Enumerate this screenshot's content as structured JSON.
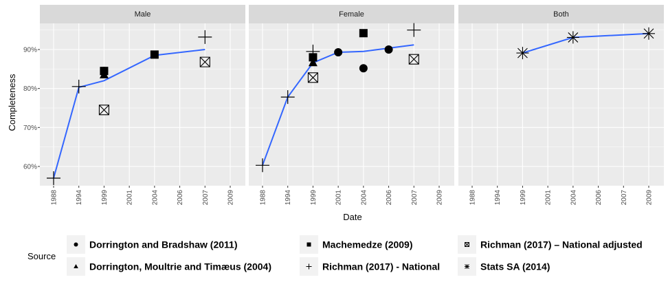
{
  "chart_data": {
    "type": "scatter",
    "ylabel": "Completeness",
    "xlabel": "Date",
    "x_ticks": [
      1988,
      1994,
      1999,
      2001,
      2004,
      2006,
      2007,
      2009
    ],
    "y_ticks": [
      0.6,
      0.7,
      0.8,
      0.9
    ],
    "y_tick_labels": [
      "60%",
      "70%",
      "80%",
      "90%"
    ],
    "ylim": [
      0.55,
      0.98
    ],
    "grid": true,
    "facets": [
      {
        "label": "Male",
        "points": [
          {
            "source": "richman_national",
            "x": 1988,
            "y": 0.57
          },
          {
            "source": "richman_national",
            "x": 1994,
            "y": 0.805
          },
          {
            "source": "dorrington_bradshaw",
            "x": 1999,
            "y": 0.845
          },
          {
            "source": "machemedze",
            "x": 1999,
            "y": 0.845
          },
          {
            "source": "dorrington_moultrie",
            "x": 1999,
            "y": 0.835
          },
          {
            "source": "richman_adjusted",
            "x": 1999,
            "y": 0.745
          },
          {
            "source": "machemedze",
            "x": 2004,
            "y": 0.887
          },
          {
            "source": "richman_national",
            "x": 2007,
            "y": 0.932
          },
          {
            "source": "richman_adjusted",
            "x": 2007,
            "y": 0.868
          }
        ],
        "smooth": [
          [
            1988,
            0.57
          ],
          [
            1994,
            0.803
          ],
          [
            1999,
            0.82
          ],
          [
            2004,
            0.885
          ],
          [
            2007,
            0.9
          ]
        ]
      },
      {
        "label": "Female",
        "points": [
          {
            "source": "richman_national",
            "x": 1988,
            "y": 0.603
          },
          {
            "source": "richman_national",
            "x": 1994,
            "y": 0.778
          },
          {
            "source": "dorrington_moultrie",
            "x": 1999,
            "y": 0.866
          },
          {
            "source": "richman_national",
            "x": 1999,
            "y": 0.895
          },
          {
            "source": "machemedze",
            "x": 1999,
            "y": 0.88
          },
          {
            "source": "richman_adjusted",
            "x": 1999,
            "y": 0.828
          },
          {
            "source": "dorrington_bradshaw",
            "x": 2001,
            "y": 0.893
          },
          {
            "source": "machemedze",
            "x": 2004,
            "y": 0.942
          },
          {
            "source": "dorrington_bradshaw",
            "x": 2004,
            "y": 0.852
          },
          {
            "source": "dorrington_bradshaw",
            "x": 2006,
            "y": 0.9
          },
          {
            "source": "richman_national",
            "x": 2007,
            "y": 0.95
          },
          {
            "source": "richman_adjusted",
            "x": 2007,
            "y": 0.875
          }
        ],
        "smooth": [
          [
            1988,
            0.603
          ],
          [
            1994,
            0.778
          ],
          [
            1999,
            0.866
          ],
          [
            2001,
            0.893
          ],
          [
            2004,
            0.895
          ],
          [
            2007,
            0.912
          ]
        ]
      },
      {
        "label": "Both",
        "points": [
          {
            "source": "stats_sa",
            "x": 1999,
            "y": 0.891
          },
          {
            "source": "stats_sa",
            "x": 2004,
            "y": 0.931
          },
          {
            "source": "stats_sa",
            "x": 2009,
            "y": 0.941
          }
        ],
        "smooth": [
          [
            1999,
            0.891
          ],
          [
            2004,
            0.931
          ],
          [
            2009,
            0.941
          ]
        ]
      }
    ],
    "legend": {
      "title": "Source",
      "position": "bottom",
      "entries": [
        {
          "key": "dorrington_bradshaw",
          "label": "Dorrington and Bradshaw (2011)",
          "shape": "circle"
        },
        {
          "key": "dorrington_moultrie",
          "label": "Dorrington, Moultrie and Timæus (2004)",
          "shape": "triangle"
        },
        {
          "key": "machemedze",
          "label": "Machemedze (2009)",
          "shape": "square"
        },
        {
          "key": "richman_national",
          "label": "Richman (2017) - National",
          "shape": "plus"
        },
        {
          "key": "richman_adjusted",
          "label": "Richman (2017) – National adjusted",
          "shape": "boxcross"
        },
        {
          "key": "stats_sa",
          "label": "Stats SA (2014)",
          "shape": "asterisk"
        }
      ]
    },
    "colors": {
      "panel_background": "#ebebeb",
      "grid": "#ffffff",
      "strip_background": "#d9d9d9",
      "smooth_line": "#3366ff",
      "points": "#000000"
    }
  }
}
